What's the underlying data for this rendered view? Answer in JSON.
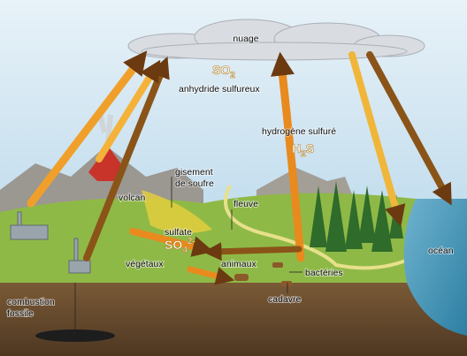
{
  "labels": {
    "cloud": "nuage",
    "so2": {
      "base": "SO",
      "sub": "2"
    },
    "so2_name": "anhydride sulfureux",
    "h2s_name": "hydrogène sulfuré",
    "h2s": {
      "base": "H",
      "sub": "2",
      "rest": "S"
    },
    "deposit": [
      "gisement",
      "de soufre"
    ],
    "volcano": "volcan",
    "river": "fleuve",
    "sulfate": "sulfate",
    "so4": {
      "base": "SO",
      "sub": "4",
      "sup": "2-"
    },
    "plants": "végétaux",
    "animals": "animaux",
    "bacteria": "bactéries",
    "ocean": "océan",
    "fossil": [
      "combustion",
      "fossile"
    ],
    "corpse": "cadavre"
  }
}
